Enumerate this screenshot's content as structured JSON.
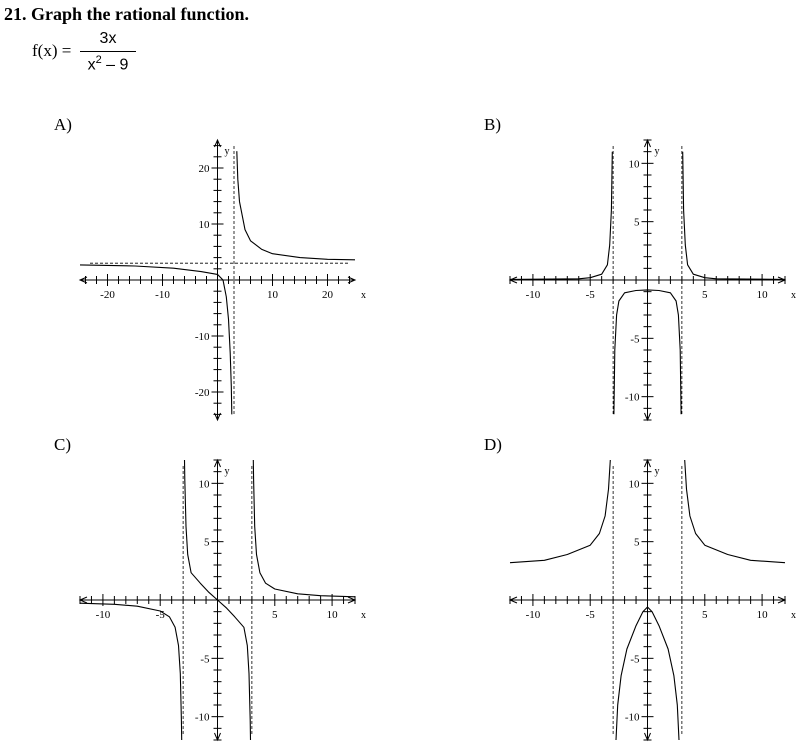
{
  "question": {
    "number": "21.",
    "prompt": "Graph the rational function.",
    "function_lhs": "f(x) =",
    "numerator": "3x",
    "denominator_base": "x",
    "denominator_exp": "2",
    "denominator_rest": " – 9"
  },
  "options": [
    {
      "label": "A)",
      "xlim": [
        -25,
        25
      ],
      "ylim": [
        -25,
        25
      ],
      "x_ticks": [
        -20,
        -10,
        10,
        20
      ],
      "x_tick_labels": [
        "-20",
        "-10",
        "10",
        "20"
      ],
      "y_ticks": [
        20,
        10,
        -10,
        -20
      ],
      "y_tick_labels": [
        "20",
        "10",
        "-10",
        "-20"
      ],
      "minor_step": 2,
      "x_axis_label": "x",
      "y_axis_label": "y",
      "vertical_asymptotes": [
        3
      ],
      "horizontal_asymptotes": [
        3
      ],
      "branches": [
        [
          [
            -25,
            2.7
          ],
          [
            -15,
            2.5
          ],
          [
            -8,
            2.1
          ],
          [
            -3,
            1.5
          ],
          [
            0,
            1.0
          ],
          [
            1,
            0.0
          ],
          [
            1.6,
            -3
          ],
          [
            2,
            -7
          ],
          [
            2.3,
            -13
          ],
          [
            2.5,
            -19
          ],
          [
            2.6,
            -24
          ]
        ],
        [
          [
            3.5,
            23
          ],
          [
            3.7,
            18
          ],
          [
            4,
            14
          ],
          [
            5,
            9
          ],
          [
            6,
            7
          ],
          [
            8,
            5.5
          ],
          [
            10,
            4.7
          ],
          [
            15,
            4.0
          ],
          [
            20,
            3.7
          ],
          [
            25,
            3.6
          ]
        ]
      ]
    },
    {
      "label": "B)",
      "xlim": [
        -12,
        12
      ],
      "ylim": [
        -12,
        12
      ],
      "x_ticks": [
        -10,
        -5,
        5,
        10
      ],
      "x_tick_labels": [
        "-10",
        "-5",
        "5",
        "10"
      ],
      "y_ticks": [
        10,
        5,
        -5,
        -10
      ],
      "y_tick_labels": [
        "10",
        "5",
        "-5",
        "-10"
      ],
      "minor_step": 1,
      "x_axis_label": "x",
      "y_axis_label": "y",
      "vertical_asymptotes": [
        -3,
        3
      ],
      "horizontal_asymptotes": [],
      "branches": [
        [
          [
            -12,
            0.05
          ],
          [
            -6,
            0.1
          ],
          [
            -5,
            0.2
          ],
          [
            -4,
            0.5
          ],
          [
            -3.5,
            1.3
          ],
          [
            -3.3,
            3
          ],
          [
            -3.15,
            6
          ],
          [
            -3.07,
            11
          ]
        ],
        [
          [
            3.07,
            11
          ],
          [
            3.15,
            6
          ],
          [
            3.3,
            3
          ],
          [
            3.5,
            1.3
          ],
          [
            4,
            0.5
          ],
          [
            5,
            0.2
          ],
          [
            6,
            0.1
          ],
          [
            12,
            0.05
          ]
        ],
        [
          [
            -2.93,
            -11.5
          ],
          [
            -2.85,
            -6
          ],
          [
            -2.7,
            -3
          ],
          [
            -2.5,
            -1.8
          ],
          [
            -2,
            -1.1
          ],
          [
            -1,
            -0.9
          ],
          [
            0,
            -0.85
          ],
          [
            1,
            -0.9
          ],
          [
            2,
            -1.1
          ],
          [
            2.5,
            -1.8
          ],
          [
            2.7,
            -3
          ],
          [
            2.85,
            -6
          ],
          [
            2.93,
            -11.5
          ]
        ]
      ]
    },
    {
      "label": "C)",
      "xlim": [
        -12,
        12
      ],
      "ylim": [
        -12,
        12
      ],
      "x_ticks": [
        -10,
        -5,
        5,
        10
      ],
      "x_tick_labels": [
        "-10",
        "-5",
        "5",
        "10"
      ],
      "y_ticks": [
        10,
        5,
        -5,
        -10
      ],
      "y_tick_labels": [
        "10",
        "5",
        "-5",
        "-10"
      ],
      "minor_step": 1,
      "x_axis_label": "x",
      "y_axis_label": "y",
      "vertical_asymptotes": [
        -3,
        3
      ],
      "horizontal_asymptotes": [],
      "branches": [
        [
          [
            -12,
            -0.27
          ],
          [
            -9,
            -0.37
          ],
          [
            -7,
            -0.53
          ],
          [
            -5,
            -0.94
          ],
          [
            -4.2,
            -1.44
          ],
          [
            -3.7,
            -2.34
          ],
          [
            -3.4,
            -3.9
          ],
          [
            -3.25,
            -6.3
          ],
          [
            -3.15,
            -10.3
          ],
          [
            -3.12,
            -12
          ]
        ],
        [
          [
            -2.88,
            12
          ],
          [
            -2.85,
            10.3
          ],
          [
            -2.75,
            6.3
          ],
          [
            -2.6,
            3.9
          ],
          [
            -2.3,
            2.34
          ],
          [
            -1.5,
            1.44
          ],
          [
            -0.8,
            0.7
          ],
          [
            0,
            0
          ],
          [
            0.8,
            -0.7
          ],
          [
            1.5,
            -1.44
          ],
          [
            2.3,
            -2.34
          ],
          [
            2.6,
            -3.9
          ],
          [
            2.75,
            -6.3
          ],
          [
            2.85,
            -10.3
          ],
          [
            2.88,
            -12
          ]
        ],
        [
          [
            3.12,
            12
          ],
          [
            3.15,
            10.3
          ],
          [
            3.25,
            6.3
          ],
          [
            3.4,
            3.9
          ],
          [
            3.7,
            2.34
          ],
          [
            4.2,
            1.44
          ],
          [
            5,
            0.94
          ],
          [
            7,
            0.53
          ],
          [
            9,
            0.37
          ],
          [
            12,
            0.27
          ]
        ]
      ]
    },
    {
      "label": "D)",
      "xlim": [
        -12,
        12
      ],
      "ylim": [
        -12,
        12
      ],
      "x_ticks": [
        -10,
        -5,
        5,
        10
      ],
      "x_tick_labels": [
        "-10",
        "-5",
        "5",
        "10"
      ],
      "y_ticks": [
        10,
        5,
        -5,
        -10
      ],
      "y_tick_labels": [
        "10",
        "5",
        "-5",
        "-10"
      ],
      "minor_step": 1,
      "x_axis_label": "x",
      "y_axis_label": "y",
      "vertical_asymptotes": [
        -3,
        3
      ],
      "horizontal_asymptotes": [],
      "branches": [
        [
          [
            -12,
            3.2
          ],
          [
            -9,
            3.4
          ],
          [
            -7,
            3.9
          ],
          [
            -5,
            4.7
          ],
          [
            -4.2,
            5.7
          ],
          [
            -3.7,
            7.2
          ],
          [
            -3.4,
            9.5
          ],
          [
            -3.25,
            12
          ]
        ],
        [
          [
            3.25,
            12
          ],
          [
            3.4,
            9.5
          ],
          [
            3.7,
            7.2
          ],
          [
            4.2,
            5.7
          ],
          [
            5,
            4.7
          ],
          [
            7,
            3.9
          ],
          [
            9,
            3.4
          ],
          [
            12,
            3.2
          ]
        ],
        [
          [
            -2.75,
            -12
          ],
          [
            -2.6,
            -9
          ],
          [
            -2.3,
            -6.5
          ],
          [
            -1.8,
            -4.2
          ],
          [
            -1,
            -2.2
          ],
          [
            -0.4,
            -1.0
          ],
          [
            0,
            -0.6
          ],
          [
            0.4,
            -1.0
          ],
          [
            1,
            -2.2
          ],
          [
            1.8,
            -4.2
          ],
          [
            2.3,
            -6.5
          ],
          [
            2.6,
            -9
          ],
          [
            2.75,
            -12
          ]
        ]
      ]
    }
  ]
}
